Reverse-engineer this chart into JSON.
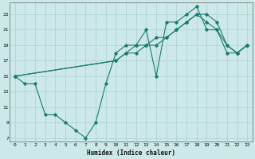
{
  "xlabel": "Humidex (Indice chaleur)",
  "bg_color": "#cce8e8",
  "grid_color": "#aad0d0",
  "line_color": "#1a7a6e",
  "xlim": [
    -0.5,
    23.5
  ],
  "ylim": [
    6.5,
    24.5
  ],
  "yticks": [
    7,
    9,
    11,
    13,
    15,
    17,
    19,
    21,
    23
  ],
  "xticks": [
    0,
    1,
    2,
    3,
    4,
    5,
    6,
    7,
    8,
    9,
    10,
    11,
    12,
    13,
    14,
    15,
    16,
    17,
    18,
    19,
    20,
    21,
    22,
    23
  ],
  "line1_x": [
    0,
    1,
    2,
    3,
    4,
    5,
    6,
    7,
    8,
    9,
    10,
    11,
    12,
    13,
    14,
    15,
    16,
    17,
    18,
    19,
    20,
    21,
    22,
    23
  ],
  "line1_y": [
    15,
    14,
    14,
    10,
    10,
    9,
    8,
    7,
    9,
    14,
    18,
    19,
    19,
    21,
    15,
    22,
    22,
    23,
    24,
    21,
    21,
    18,
    18,
    19
  ],
  "line2_x": [
    0,
    10,
    11,
    12,
    13,
    14,
    15,
    16,
    17,
    18,
    19,
    20,
    21,
    22,
    23
  ],
  "line2_y": [
    15,
    17,
    18,
    19,
    19,
    19,
    20,
    21,
    22,
    23,
    23,
    22,
    19,
    18,
    19
  ],
  "line3_x": [
    0,
    10,
    11,
    12,
    13,
    14,
    15,
    16,
    17,
    18,
    19,
    20,
    21,
    22,
    23
  ],
  "line3_y": [
    15,
    17,
    18,
    18,
    19,
    20,
    20,
    21,
    22,
    23,
    22,
    21,
    19,
    18,
    19
  ]
}
